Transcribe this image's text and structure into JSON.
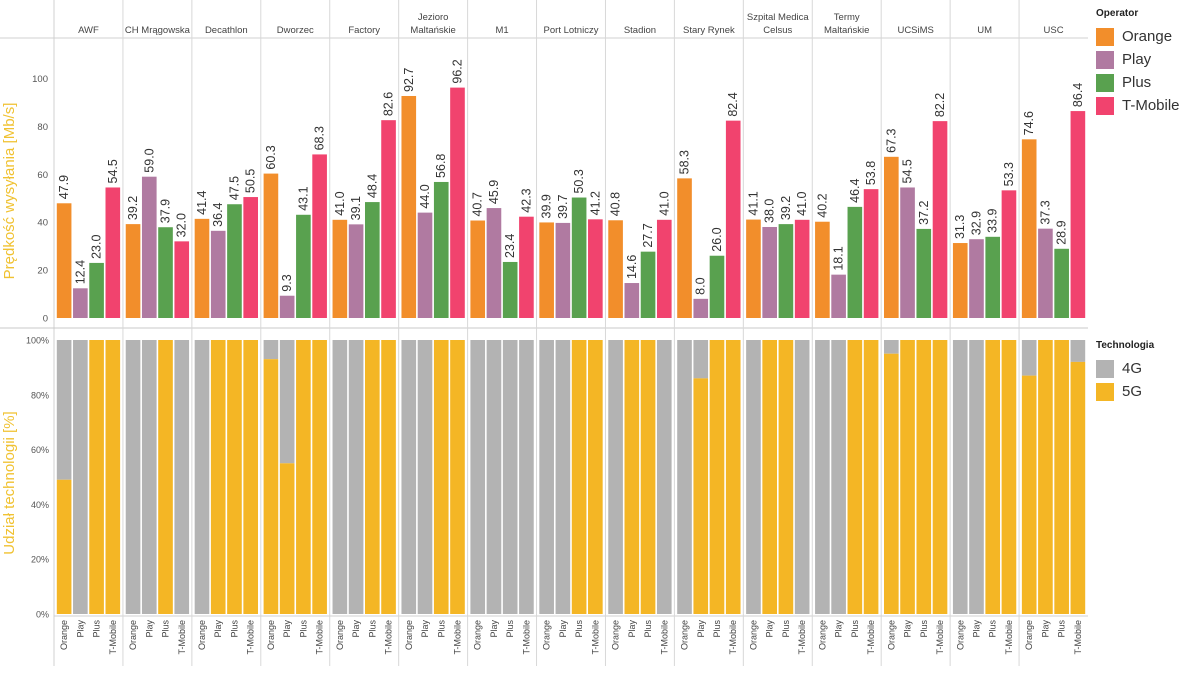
{
  "chart_data": {
    "type": "bar",
    "categories": [
      "AWF",
      "CH Mrągowska",
      "Decathlon",
      "Dworzec",
      "Factory",
      "Jezioro Maltańskie",
      "M1",
      "Port Lotniczy",
      "Stadion",
      "Stary Rynek",
      "Szpital Medica Celsus",
      "Termy Maltańskie",
      "UCSiMS",
      "UM",
      "USC"
    ],
    "operators": [
      "Orange",
      "Play",
      "Plus",
      "T-Mobile"
    ],
    "speed": {
      "ylabel": "Prędkość wysyłania [Mb/s]",
      "yticks": [
        0,
        20,
        40,
        60,
        80,
        100
      ],
      "ylim": [
        0,
        108
      ],
      "series": [
        {
          "name": "Orange",
          "color": "#F28E2B",
          "values": [
            47.9,
            39.2,
            41.4,
            60.3,
            41.0,
            92.7,
            40.7,
            39.9,
            40.8,
            58.3,
            41.1,
            40.2,
            67.3,
            31.3,
            74.6
          ]
        },
        {
          "name": "Play",
          "color": "#B07AA1",
          "values": [
            12.4,
            59.0,
            36.4,
            9.3,
            39.1,
            44.0,
            45.9,
            39.7,
            14.6,
            8.0,
            38.0,
            18.1,
            54.5,
            32.9,
            37.3
          ]
        },
        {
          "name": "Plus",
          "color": "#59A14F",
          "values": [
            23.0,
            37.9,
            47.5,
            43.1,
            48.4,
            56.8,
            23.4,
            50.3,
            27.7,
            26.0,
            39.2,
            46.4,
            37.2,
            33.9,
            28.9
          ]
        },
        {
          "name": "T-Mobile",
          "color": "#F1436E",
          "values": [
            54.5,
            32.0,
            50.5,
            68.3,
            82.6,
            96.2,
            42.3,
            41.2,
            41.0,
            82.4,
            41.0,
            53.8,
            82.2,
            53.3,
            86.4
          ]
        }
      ]
    },
    "share": {
      "ylabel": "Udział technologii [%]",
      "yticks": [
        "0%",
        "20%",
        "40%",
        "60%",
        "80%",
        "100%"
      ],
      "ylim": [
        0,
        100
      ],
      "series_5g": [
        {
          "name": "Orange",
          "values": [
            49,
            0,
            0,
            93,
            0,
            0,
            0,
            0,
            0,
            0,
            0,
            0,
            95,
            0,
            87
          ]
        },
        {
          "name": "Play",
          "values": [
            0,
            0,
            100,
            55,
            0,
            0,
            0,
            0,
            100,
            86,
            100,
            0,
            100,
            0,
            100
          ]
        },
        {
          "name": "Plus",
          "values": [
            100,
            100,
            100,
            100,
            100,
            100,
            0,
            100,
            100,
            100,
            100,
            100,
            100,
            100,
            100
          ]
        },
        {
          "name": "T-Mobile",
          "values": [
            100,
            0,
            100,
            100,
            100,
            100,
            0,
            100,
            0,
            100,
            0,
            100,
            100,
            100,
            92
          ]
        }
      ]
    }
  },
  "legend_operator": {
    "title": "Operator",
    "items": [
      {
        "label": "Orange",
        "color": "#F28E2B"
      },
      {
        "label": "Play",
        "color": "#B07AA1"
      },
      {
        "label": "Plus",
        "color": "#59A14F"
      },
      {
        "label": "T-Mobile",
        "color": "#F1436E"
      }
    ]
  },
  "legend_technology": {
    "title": "Technologia",
    "items": [
      {
        "label": "4G",
        "color": "#B3B3B3"
      },
      {
        "label": "5G",
        "color": "#F4B625"
      }
    ]
  },
  "colors": {
    "gray4g": "#B3B3B3",
    "yellow5g": "#F4B625",
    "axis_title": "#F0C232"
  }
}
